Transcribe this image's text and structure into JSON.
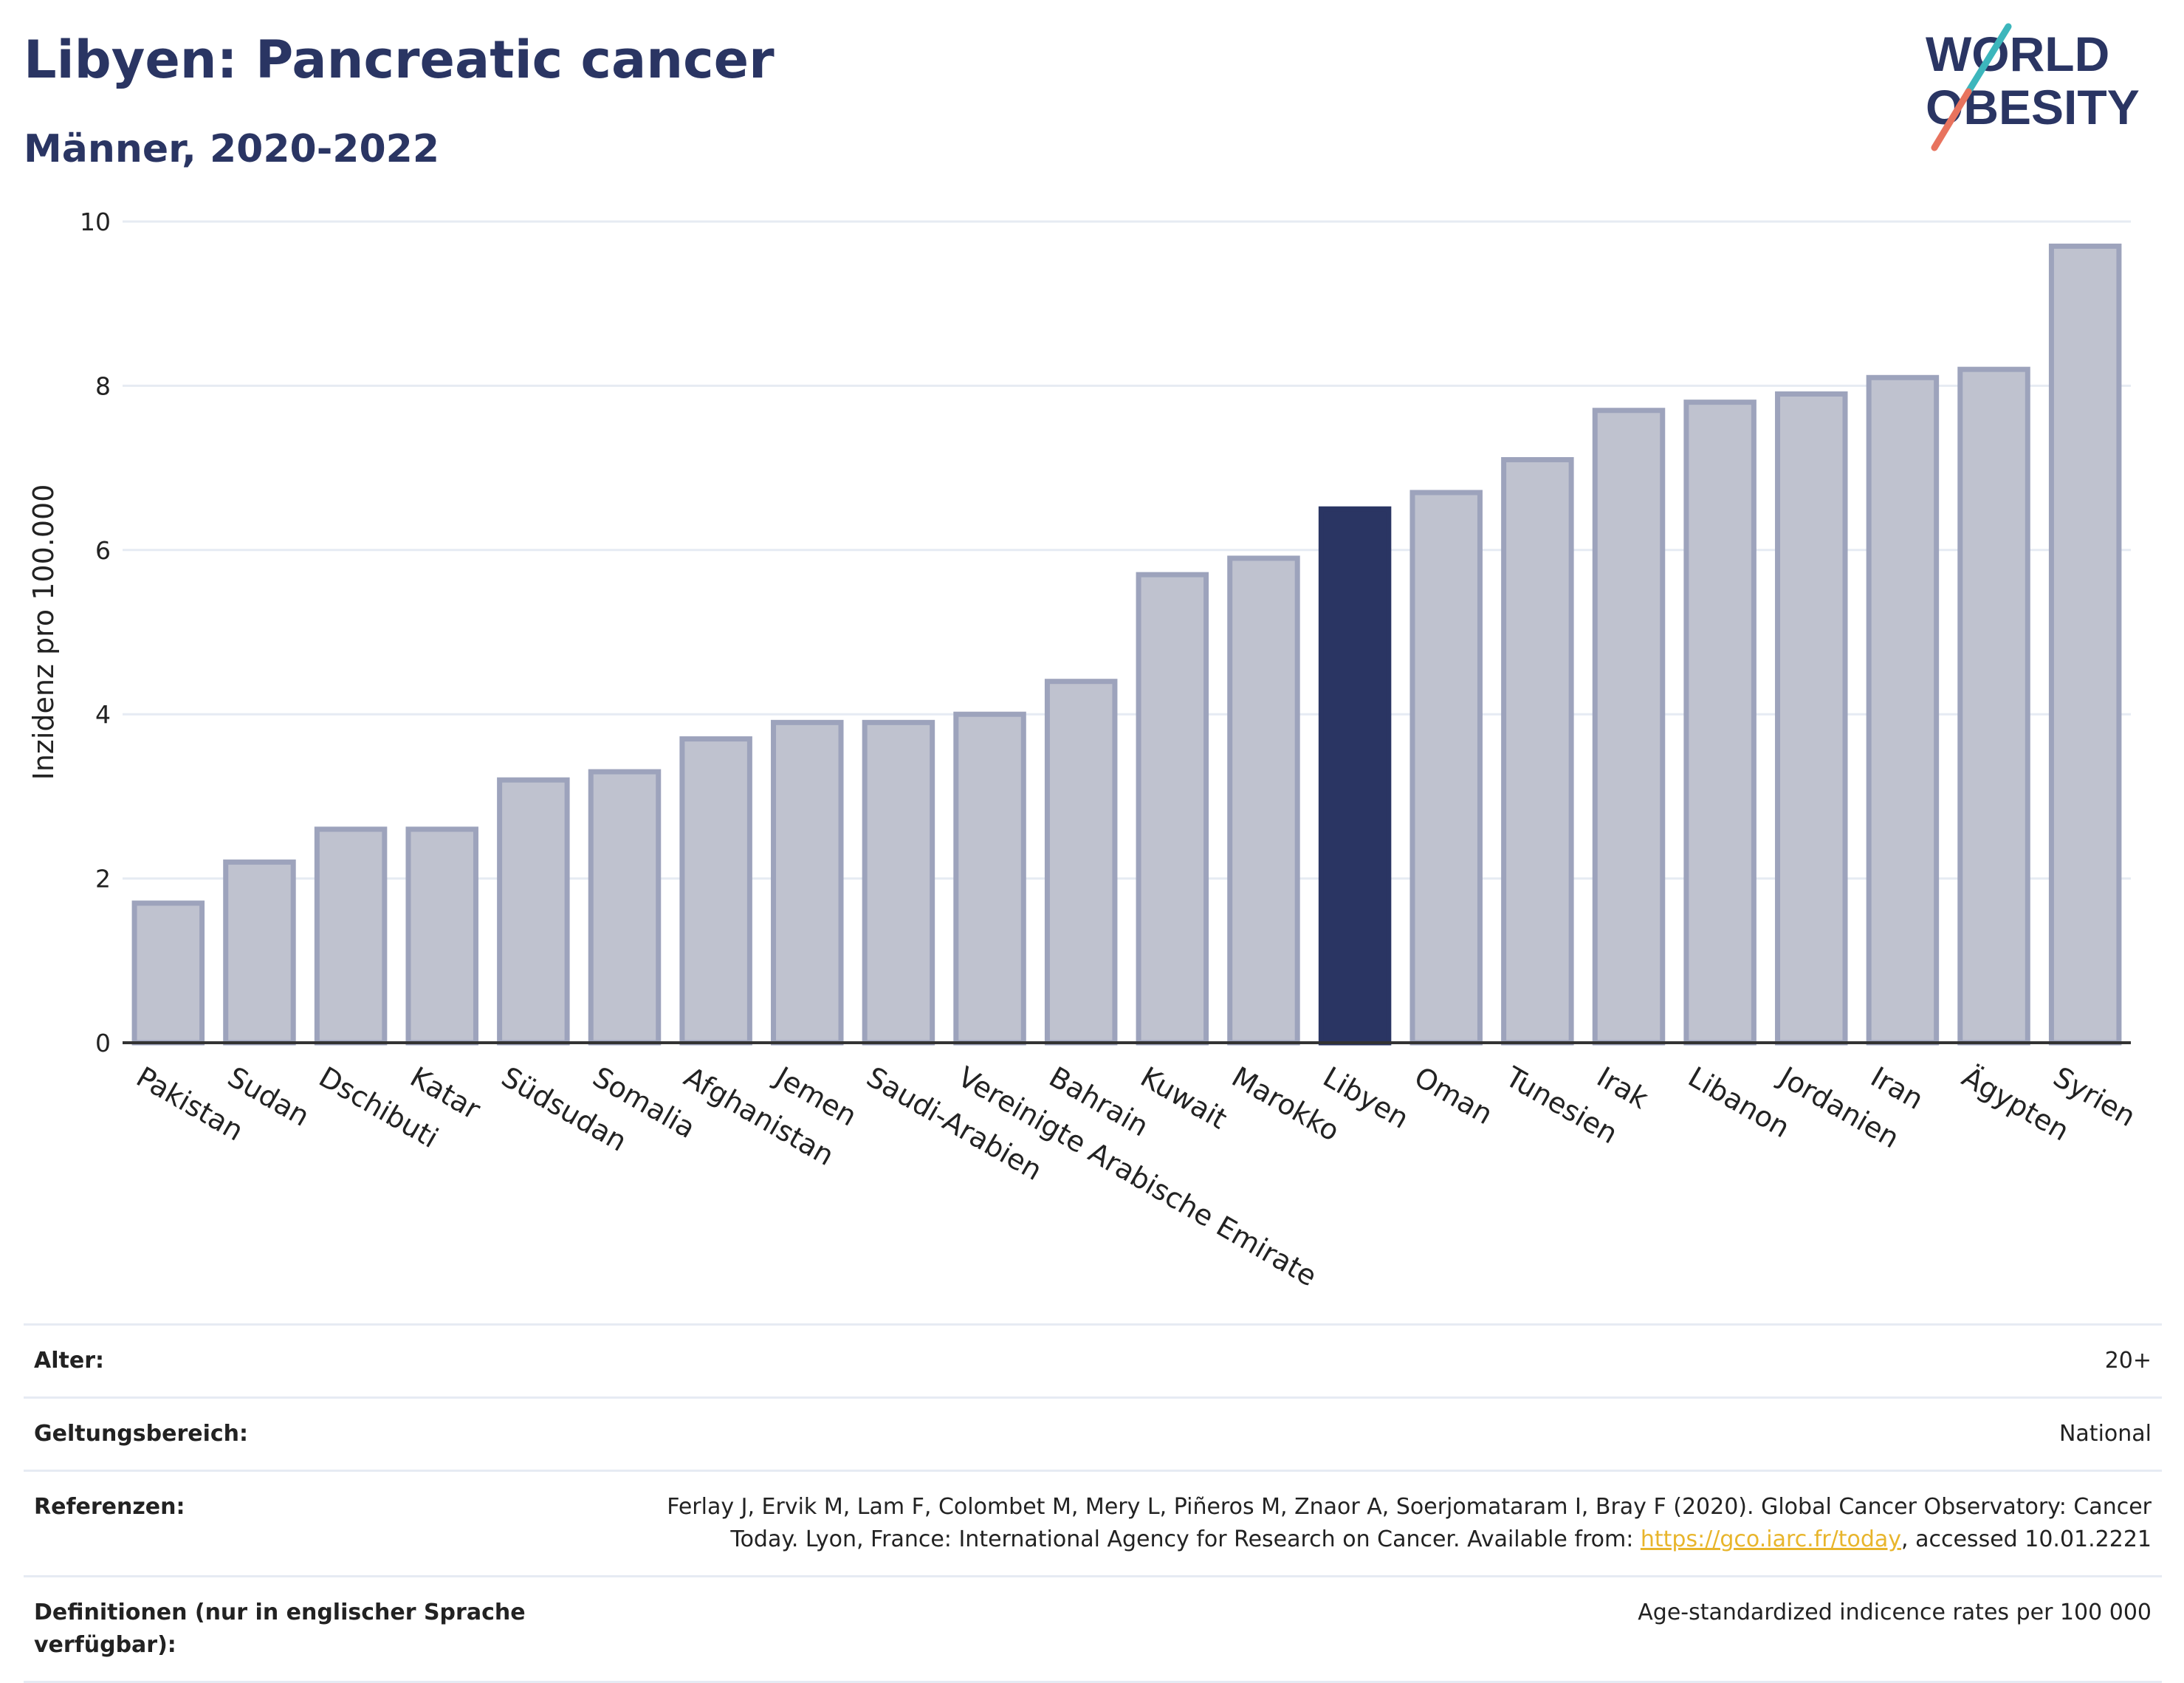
{
  "header": {
    "title": "Libyen: Pancreatic cancer",
    "subtitle": "Männer, 2020-2022"
  },
  "logo": {
    "line1": "WORLD",
    "line2": "OBESITY"
  },
  "colors": {
    "highlight": "#2a3563",
    "bar_fill": "#bfc2cf",
    "bar_stroke": "#9da3bc",
    "grid": "#e6ebf3",
    "text": "#2a3563",
    "link": "#e8b52c",
    "logo_teal": "#3cb6bc",
    "logo_coral": "#e8735e"
  },
  "chart_data": {
    "type": "bar",
    "title": "Libyen: Pancreatic cancer",
    "subtitle": "Männer, 2020-2022",
    "xlabel": "",
    "ylabel": "Inzidenz pro 100.000",
    "ylim": [
      0,
      10
    ],
    "yticks": [
      0,
      2,
      4,
      6,
      8,
      10
    ],
    "grid": true,
    "highlight": "Libyen",
    "categories": [
      "Pakistan",
      "Sudan",
      "Dschibuti",
      "Katar",
      "Südsudan",
      "Somalia",
      "Afghanistan",
      "Jemen",
      "Saudi-Arabien",
      "Vereinigte Arabische Emirate",
      "Bahrain",
      "Kuwait",
      "Marokko",
      "Libyen",
      "Oman",
      "Tunesien",
      "Irak",
      "Libanon",
      "Jordanien",
      "Iran",
      "Ägypten",
      "Syrien"
    ],
    "values": [
      1.7,
      2.2,
      2.6,
      2.6,
      3.2,
      3.3,
      3.7,
      3.9,
      3.9,
      4.0,
      4.4,
      5.7,
      5.9,
      6.5,
      6.7,
      7.1,
      7.7,
      7.8,
      7.9,
      8.1,
      8.2,
      9.7
    ]
  },
  "meta": {
    "age": {
      "label": "Alter:",
      "value": "20+"
    },
    "scope": {
      "label": "Geltungsbereich:",
      "value": "National"
    },
    "references": {
      "label": "Referenzen:",
      "text_before": "Ferlay J, Ervik M, Lam F, Colombet M, Mery L, Piñeros M, Znaor A, Soerjomataram I, Bray F (2020). Global Cancer Observatory: Cancer Today. Lyon, France: International Agency for Research on Cancer. Available from: ",
      "link": "https://gco.iarc.fr/today",
      "text_after": ", accessed 10.01.2221"
    },
    "definitions": {
      "label": "Definitionen (nur in englischer Sprache verfügbar):",
      "value": "Age-standardized indicence rates per 100 000"
    }
  }
}
